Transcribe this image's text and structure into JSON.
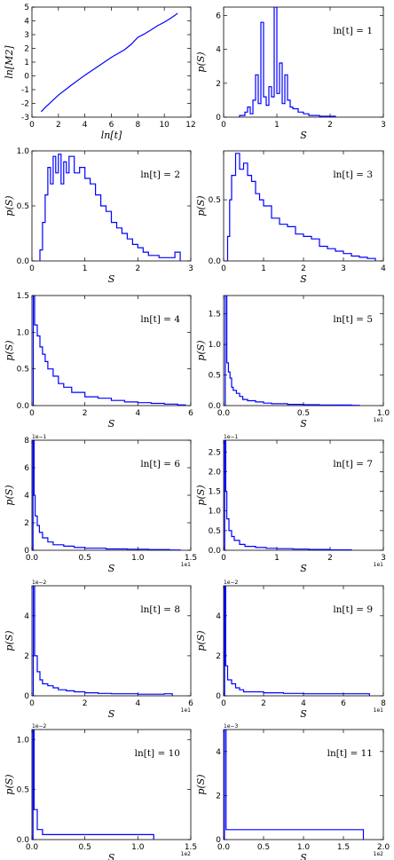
{
  "chart_data": [
    {
      "type": "line",
      "xlabel": "ln[t]",
      "ylabel": "ln[M2]",
      "xlim": [
        0,
        12
      ],
      "ylim": [
        -3,
        5
      ],
      "xticks": [
        "0",
        "2",
        "4",
        "6",
        "8",
        "10",
        "12"
      ],
      "yticks": [
        "-3",
        "-2",
        "-1",
        "0",
        "1",
        "2",
        "3",
        "4",
        "5"
      ],
      "series": [
        {
          "color": "#0000ff",
          "x": [
            0.7,
            1,
            1.5,
            2,
            3,
            4,
            5,
            6,
            7,
            7.5,
            8,
            8.5,
            9,
            9.5,
            10,
            10.5,
            10.8,
            11
          ],
          "y": [
            -2.6,
            -2.3,
            -1.85,
            -1.4,
            -0.65,
            0.05,
            0.7,
            1.35,
            1.9,
            2.3,
            2.8,
            3.05,
            3.35,
            3.65,
            3.9,
            4.2,
            4.4,
            4.55
          ]
        }
      ]
    },
    {
      "type": "step",
      "annotation": "ln[t] = 1",
      "xlabel": "S",
      "ylabel": "p(S)",
      "xlim": [
        0,
        3
      ],
      "ylim": [
        0,
        6.5
      ],
      "xticks": [
        "0",
        "1",
        "2",
        "3"
      ],
      "yticks": [
        "0",
        "2",
        "4",
        "6"
      ],
      "series": [
        {
          "color": "#0000ff",
          "x": [
            0.3,
            0.4,
            0.45,
            0.5,
            0.55,
            0.6,
            0.65,
            0.7,
            0.75,
            0.8,
            0.85,
            0.9,
            0.95,
            1.0,
            1.05,
            1.1,
            1.15,
            1.2,
            1.25,
            1.3,
            1.4,
            1.5,
            1.6,
            1.8,
            2.1
          ],
          "y": [
            0.1,
            0.3,
            0.6,
            0.2,
            1.0,
            2.5,
            0.8,
            5.6,
            1.2,
            0.7,
            1.8,
            1.2,
            6.5,
            1.4,
            3.2,
            0.8,
            2.5,
            1.0,
            0.6,
            0.5,
            0.3,
            0.2,
            0.1,
            0.05,
            0
          ]
        }
      ]
    },
    {
      "type": "step",
      "annotation": "ln[t] = 2",
      "xlabel": "S",
      "ylabel": "p(S)",
      "xlim": [
        0,
        3
      ],
      "ylim": [
        0,
        1.0
      ],
      "xticks": [
        "0",
        "1",
        "2",
        "3"
      ],
      "yticks": [
        "0.0",
        "0.5",
        "1.0"
      ],
      "series": [
        {
          "color": "#0000ff",
          "x": [
            0.15,
            0.2,
            0.25,
            0.3,
            0.35,
            0.4,
            0.45,
            0.5,
            0.55,
            0.6,
            0.65,
            0.7,
            0.8,
            0.9,
            1.0,
            1.1,
            1.2,
            1.3,
            1.4,
            1.5,
            1.6,
            1.7,
            1.8,
            1.9,
            2.0,
            2.1,
            2.2,
            2.4,
            2.7,
            2.8
          ],
          "y": [
            0.1,
            0.35,
            0.6,
            0.85,
            0.7,
            0.95,
            0.8,
            0.97,
            0.7,
            0.9,
            0.8,
            0.95,
            0.8,
            0.85,
            0.75,
            0.7,
            0.6,
            0.5,
            0.45,
            0.35,
            0.3,
            0.25,
            0.2,
            0.15,
            0.12,
            0.08,
            0.05,
            0.03,
            0.08,
            0
          ]
        }
      ]
    },
    {
      "type": "step",
      "annotation": "ln[t] = 3",
      "xlabel": "S",
      "ylabel": "p(S)",
      "xlim": [
        0,
        4
      ],
      "ylim": [
        0,
        0.9
      ],
      "xticks": [
        "0",
        "1",
        "2",
        "3",
        "4"
      ],
      "yticks": [
        "0.0",
        "0.5"
      ],
      "series": [
        {
          "color": "#0000ff",
          "x": [
            0.1,
            0.15,
            0.2,
            0.3,
            0.4,
            0.5,
            0.6,
            0.7,
            0.8,
            0.9,
            1.0,
            1.2,
            1.4,
            1.6,
            1.8,
            2.0,
            2.2,
            2.4,
            2.6,
            2.8,
            3.0,
            3.2,
            3.4,
            3.6,
            3.8
          ],
          "y": [
            0.2,
            0.5,
            0.7,
            0.88,
            0.75,
            0.8,
            0.7,
            0.65,
            0.55,
            0.5,
            0.45,
            0.35,
            0.3,
            0.28,
            0.22,
            0.2,
            0.18,
            0.12,
            0.1,
            0.08,
            0.06,
            0.04,
            0.03,
            0.02,
            0
          ]
        }
      ]
    },
    {
      "type": "step",
      "annotation": "ln[t] = 4",
      "xlabel": "S",
      "ylabel": "p(S)",
      "xlim": [
        0,
        6
      ],
      "ylim": [
        0,
        1.5
      ],
      "xticks": [
        "0",
        "2",
        "4",
        "6"
      ],
      "yticks": [
        "0.0",
        "0.5",
        "1.0",
        "1.5"
      ],
      "series": [
        {
          "color": "#0000ff",
          "x": [
            0.05,
            0.1,
            0.2,
            0.3,
            0.4,
            0.5,
            0.6,
            0.8,
            1.0,
            1.2,
            1.5,
            2.0,
            2.5,
            3.0,
            3.5,
            4.0,
            4.5,
            5.0,
            5.5,
            5.8
          ],
          "y": [
            1.5,
            1.1,
            0.95,
            0.8,
            0.7,
            0.6,
            0.5,
            0.4,
            0.3,
            0.25,
            0.18,
            0.12,
            0.1,
            0.07,
            0.05,
            0.04,
            0.03,
            0.02,
            0.01,
            0
          ]
        }
      ]
    },
    {
      "type": "step",
      "annotation": "ln[t] = 5",
      "xlabel": "S",
      "ylabel": "p(S)",
      "xlim": [
        0,
        1.0
      ],
      "xoffset": "1e1",
      "ylim": [
        0,
        1.8
      ],
      "xticks": [
        "0.0",
        "0.5",
        "1.0"
      ],
      "yticks": [
        "0.0",
        "0.5",
        "1.0",
        "1.5"
      ],
      "series": [
        {
          "color": "#0000ff",
          "x": [
            0.01,
            0.02,
            0.03,
            0.04,
            0.05,
            0.06,
            0.08,
            0.1,
            0.12,
            0.15,
            0.2,
            0.25,
            0.3,
            0.4,
            0.5,
            0.6,
            0.7,
            0.8,
            0.85
          ],
          "y": [
            1.8,
            0.7,
            0.55,
            0.45,
            0.3,
            0.25,
            0.2,
            0.15,
            0.1,
            0.08,
            0.06,
            0.04,
            0.03,
            0.02,
            0.015,
            0.01,
            0.008,
            0.005,
            0
          ]
        }
      ]
    },
    {
      "type": "step",
      "annotation": "ln[t] = 6",
      "xlabel": "S",
      "ylabel": "p(S)",
      "xlim": [
        0,
        1.5
      ],
      "xoffset": "1e1",
      "yoffset": "1e−1",
      "ylim": [
        0,
        8
      ],
      "xticks": [
        "0.0",
        "0.5",
        "1.0",
        "1.5"
      ],
      "yticks": [
        "0",
        "2",
        "4",
        "6",
        "8"
      ],
      "series": [
        {
          "color": "#0000ff",
          "x": [
            0.01,
            0.02,
            0.03,
            0.05,
            0.07,
            0.1,
            0.15,
            0.2,
            0.3,
            0.4,
            0.5,
            0.7,
            0.9,
            1.1,
            1.3,
            1.4
          ],
          "y": [
            8,
            4,
            2.5,
            1.8,
            1.3,
            0.9,
            0.6,
            0.4,
            0.3,
            0.2,
            0.15,
            0.1,
            0.08,
            0.05,
            0.02,
            0
          ]
        }
      ]
    },
    {
      "type": "step",
      "annotation": "ln[t] = 7",
      "xlabel": "S",
      "ylabel": "p(S)",
      "xlim": [
        0,
        3
      ],
      "xoffset": "1e1",
      "yoffset": "1e−1",
      "ylim": [
        0,
        2.8
      ],
      "xticks": [
        "0",
        "1",
        "2",
        "3"
      ],
      "yticks": [
        "0.0",
        "0.5",
        "1.0",
        "1.5",
        "2.0",
        "2.5"
      ],
      "series": [
        {
          "color": "#0000ff",
          "x": [
            0.02,
            0.04,
            0.06,
            0.1,
            0.15,
            0.2,
            0.3,
            0.4,
            0.6,
            0.8,
            1.0,
            1.3,
            1.6,
            2.0,
            2.4
          ],
          "y": [
            2.8,
            1.5,
            0.8,
            0.5,
            0.35,
            0.25,
            0.15,
            0.1,
            0.07,
            0.05,
            0.04,
            0.03,
            0.02,
            0.01,
            0
          ]
        }
      ]
    },
    {
      "type": "step",
      "annotation": "ln[t] = 8",
      "xlabel": "S",
      "ylabel": "p(S)",
      "xlim": [
        0,
        6
      ],
      "xoffset": "1e1",
      "yoffset": "1e−2",
      "ylim": [
        0,
        5.5
      ],
      "xticks": [
        "0",
        "2",
        "4",
        "6"
      ],
      "yticks": [
        "0",
        "2",
        "4"
      ],
      "series": [
        {
          "color": "#0000ff",
          "x": [
            0.05,
            0.1,
            0.2,
            0.3,
            0.4,
            0.6,
            0.8,
            1.0,
            1.3,
            1.6,
            2.0,
            2.5,
            3.0,
            4.0,
            5.0,
            5.3
          ],
          "y": [
            5.5,
            2.0,
            1.2,
            0.8,
            0.6,
            0.5,
            0.4,
            0.3,
            0.25,
            0.2,
            0.15,
            0.12,
            0.1,
            0.08,
            0.1,
            0
          ]
        }
      ]
    },
    {
      "type": "step",
      "annotation": "ln[t] = 9",
      "xlabel": "S",
      "ylabel": "p(S)",
      "xlim": [
        0,
        8
      ],
      "xoffset": "1e1",
      "yoffset": "1e−2",
      "ylim": [
        0,
        5.5
      ],
      "xticks": [
        "0",
        "2",
        "4",
        "6",
        "8"
      ],
      "yticks": [
        "0",
        "2",
        "4"
      ],
      "series": [
        {
          "color": "#0000ff",
          "x": [
            0.05,
            0.1,
            0.2,
            0.4,
            0.6,
            0.8,
            1.0,
            1.5,
            2.0,
            2.5,
            3.0,
            4.0,
            5.0,
            6.0,
            7.0,
            7.3
          ],
          "y": [
            5.5,
            1.5,
            0.8,
            0.6,
            0.4,
            0.3,
            0.2,
            0.2,
            0.15,
            0.15,
            0.12,
            0.1,
            0.1,
            0.1,
            0.1,
            0
          ]
        }
      ]
    },
    {
      "type": "step",
      "annotation": "ln[t] = 10",
      "xlabel": "S",
      "ylabel": "p(S)",
      "xlim": [
        0,
        1.5
      ],
      "xoffset": "1e2",
      "yoffset": "1e−2",
      "ylim": [
        0,
        1.1
      ],
      "xticks": [
        "0.0",
        "0.5",
        "1.0",
        "1.5"
      ],
      "yticks": [
        "0.0",
        "0.5",
        "1.0"
      ],
      "series": [
        {
          "color": "#0000ff",
          "x": [
            0.01,
            0.02,
            0.05,
            0.1,
            0.2,
            0.3,
            0.4,
            0.5,
            0.6,
            0.7,
            0.85,
            1.1,
            1.15
          ],
          "y": [
            1.1,
            0.3,
            0.1,
            0.05,
            0.05,
            0.05,
            0.05,
            0.05,
            0.05,
            0.05,
            0.05,
            0.05,
            0
          ]
        }
      ]
    },
    {
      "type": "step",
      "annotation": "ln[t] = 11",
      "xlabel": "S",
      "ylabel": "p(S)",
      "xlim": [
        0,
        2.0
      ],
      "xoffset": "1e2",
      "yoffset": "1e−3",
      "ylim": [
        0,
        5
      ],
      "xticks": [
        "0.0",
        "0.5",
        "1.0",
        "1.5",
        "2.0"
      ],
      "yticks": [
        "0",
        "2",
        "4"
      ],
      "series": [
        {
          "color": "#0000ff",
          "x": [
            0.01,
            0.03,
            0.1,
            0.2,
            0.3,
            0.4,
            0.5,
            0.6,
            0.8,
            1.0,
            1.2,
            1.4,
            1.7,
            1.75
          ],
          "y": [
            5,
            0.45,
            0.45,
            0.45,
            0.45,
            0.45,
            0.45,
            0.45,
            0.45,
            0.45,
            0.45,
            0.45,
            0.45,
            0
          ]
        }
      ]
    }
  ]
}
